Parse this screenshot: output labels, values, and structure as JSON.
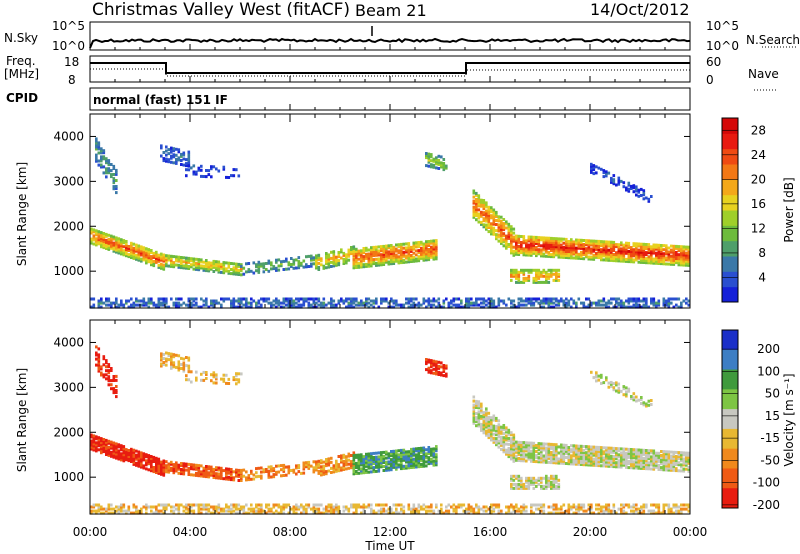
{
  "header": {
    "station": "Christmas Valley West (fitACF)",
    "beam": "Beam 21",
    "date": "14/Oct/2012",
    "cpid_label": "CPID",
    "mode": "normal (fast) 151 IF"
  },
  "strips": {
    "nsky_label": "N.Sky",
    "nsky_ticks": [
      "10^5",
      "10^0"
    ],
    "nsearch_label": "N.Search",
    "nsearch_ticks": [
      "10^5",
      "10^0"
    ],
    "freq_label": "Freq.",
    "freq_unit": "[MHz]",
    "freq_ticks": [
      "18",
      "8"
    ],
    "nave_label": "Nave",
    "nave_ticks": [
      "60",
      "0"
    ]
  },
  "chart_data": [
    {
      "type": "heatmap",
      "name": "power",
      "ylabel": "Slant Range [km]",
      "xlabel": "",
      "x_ticks": [
        "00:00",
        "04:00",
        "08:00",
        "12:00",
        "16:00",
        "20:00",
        "00:00"
      ],
      "y_ticks": [
        1000,
        2000,
        3000,
        4000
      ],
      "ylim": [
        180,
        4500
      ],
      "xlim_hours": [
        0,
        24
      ],
      "colorbar": {
        "label": "Power [dB]",
        "ticks": [
          4,
          8,
          12,
          16,
          20,
          24,
          28
        ],
        "range": [
          0,
          30
        ],
        "colors": [
          "#1520d8",
          "#2a4fd0",
          "#3a78a8",
          "#4f9f6a",
          "#6dbb3c",
          "#9fcf2a",
          "#e8d120",
          "#f4a81a",
          "#f37815",
          "#ef4a12",
          "#e81a10",
          "#d40808"
        ]
      }
    },
    {
      "type": "heatmap",
      "name": "velocity",
      "ylabel": "Slant Range [km]",
      "xlabel": "Time UT",
      "x_ticks": [
        "00:00",
        "04:00",
        "08:00",
        "12:00",
        "16:00",
        "20:00",
        "00:00"
      ],
      "y_ticks": [
        1000,
        2000,
        3000,
        4000
      ],
      "ylim": [
        180,
        4500
      ],
      "xlim_hours": [
        0,
        24
      ],
      "colorbar": {
        "label": "Velocity [m s⁻¹]",
        "ticks": [
          "200",
          "100",
          "50",
          "15",
          "-15",
          "-50",
          "-100",
          "-200"
        ],
        "colors": [
          "#1a2fc8",
          "#3d7ec4",
          "#3f9a3c",
          "#7ec544",
          "#c8c8c0",
          "#e8b832",
          "#f0891c",
          "#ef5a14",
          "#e81c10"
        ]
      }
    }
  ]
}
